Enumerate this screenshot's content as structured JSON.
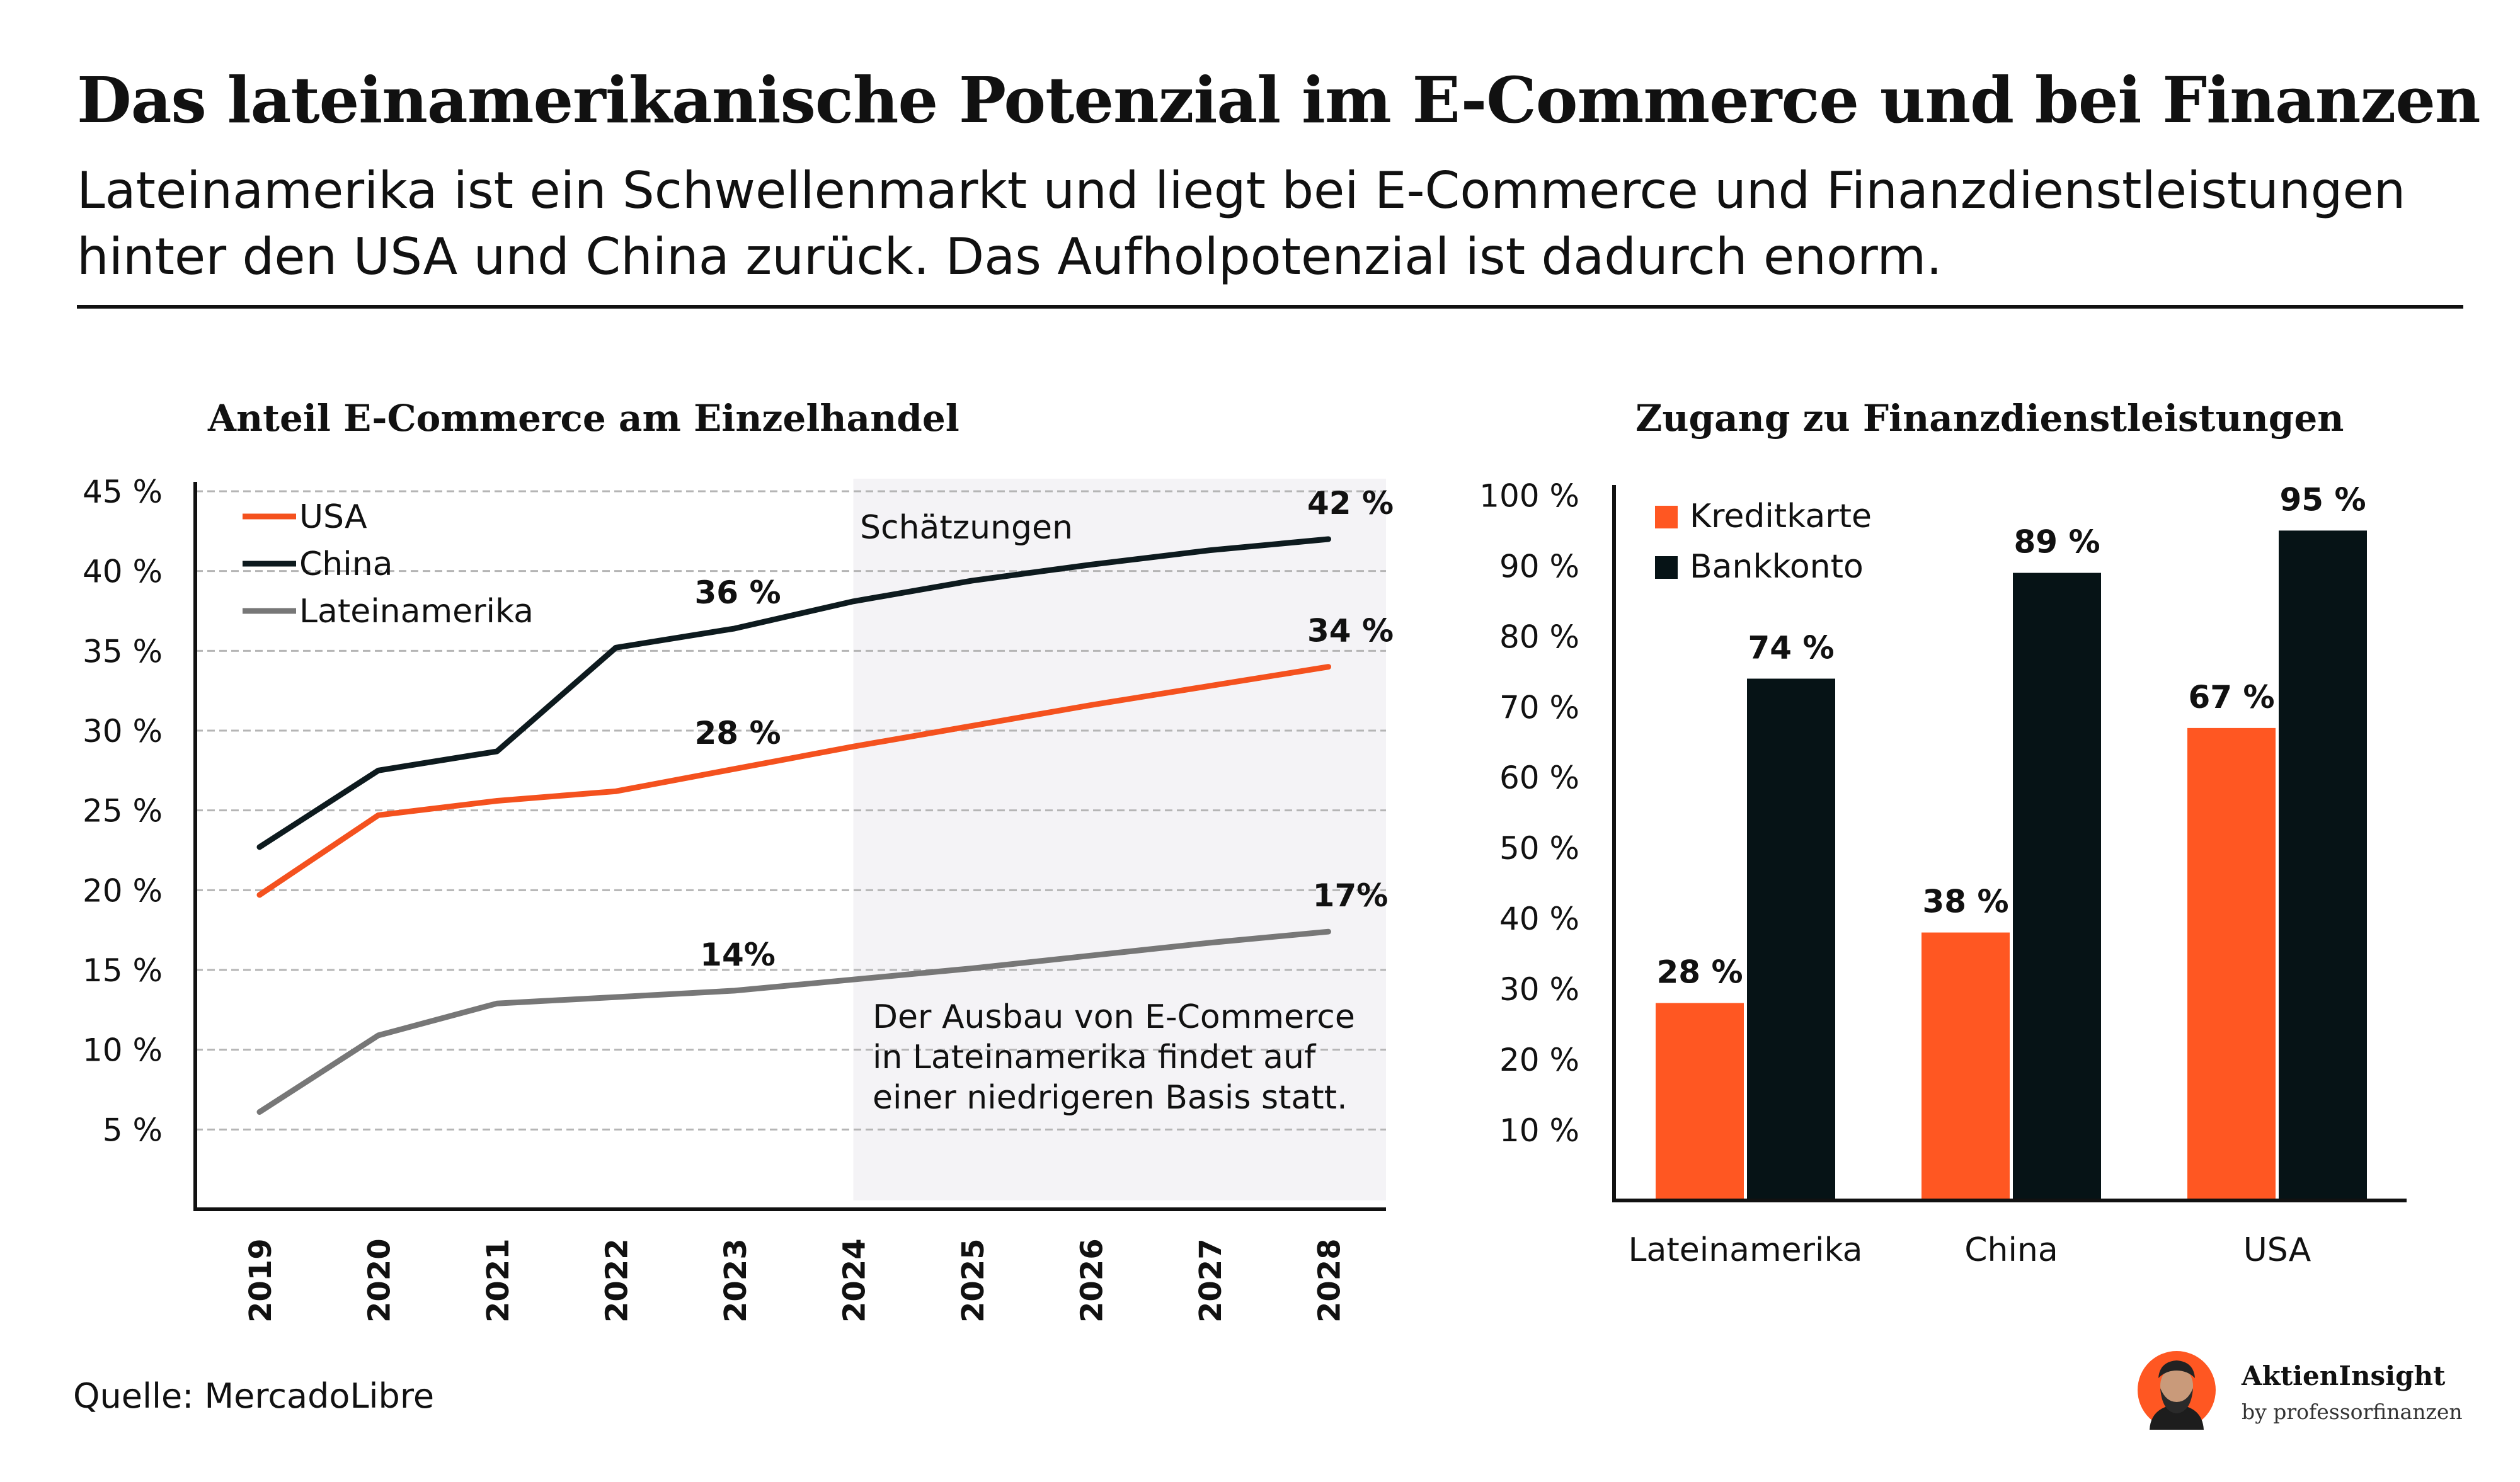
{
  "header": {
    "title": "Das lateinamerikanische Potenzial im E-Commerce und bei Finanzen",
    "subtitle_line1": "Lateinamerika ist ein Schwellenmarkt und liegt bei E-Commerce und Finanzdienstleistungen",
    "subtitle_line2": "hinter den USA und China zurück. Das Aufholpotenzial ist dadurch enorm."
  },
  "colors": {
    "usa": "#f4511e",
    "china": "#0d1a1e",
    "lateinamerika": "#777777",
    "kreditkarte": "#ff5722",
    "bankkonto": "#061316",
    "estimate_shade": "#f4f3f6",
    "grid": "#b5b5b5"
  },
  "chart_data": [
    {
      "type": "line",
      "title": "Anteil E-Commerce am Einzelhandel",
      "x": [
        "2019",
        "2020",
        "2021",
        "2022",
        "2023",
        "2024",
        "2025",
        "2026",
        "2027",
        "2028"
      ],
      "yticks": [
        "5 %",
        "10 %",
        "15 %",
        "20 %",
        "25 %",
        "30 %",
        "35 %",
        "40 %",
        "45 %"
      ],
      "ylim": [
        0,
        45
      ],
      "grid": true,
      "legend_position": "top-left",
      "series": [
        {
          "name": "USA",
          "color": "#f4511e",
          "values": [
            19.7,
            24.7,
            25.6,
            26.2,
            27.6,
            29.0,
            30.3,
            31.6,
            32.8,
            34.0
          ]
        },
        {
          "name": "China",
          "color": "#0d1a1e",
          "values": [
            22.7,
            27.5,
            28.7,
            35.2,
            36.4,
            38.1,
            39.4,
            40.4,
            41.3,
            42.0
          ]
        },
        {
          "name": "Lateinamerika",
          "color": "#777777",
          "values": [
            6.1,
            10.9,
            12.9,
            13.3,
            13.7,
            14.4,
            15.1,
            15.9,
            16.7,
            17.4
          ]
        }
      ],
      "estimate_region": {
        "from": "2024",
        "to": "2028",
        "label": "Schätzungen"
      },
      "annotations": [
        {
          "text": "36 %",
          "x": "2023",
          "y": 36.4,
          "series": "China"
        },
        {
          "text": "42 %",
          "x": "2028",
          "y": 42.0,
          "series": "China"
        },
        {
          "text": "28 %",
          "x": "2023",
          "y": 27.6,
          "series": "USA"
        },
        {
          "text": "34 %",
          "x": "2028",
          "y": 34.0,
          "series": "USA"
        },
        {
          "text": "14%",
          "x": "2023",
          "y": 13.7,
          "series": "Lateinamerika"
        },
        {
          "text": "17%",
          "x": "2028",
          "y": 17.4,
          "series": "Lateinamerika"
        }
      ],
      "note_lines": [
        "Der Ausbau von E-Commerce",
        "in Lateinamerika findet auf",
        "einer niedrigeren Basis statt."
      ]
    },
    {
      "type": "bar",
      "title": "Zugang zu Finanzdienstleistungen",
      "categories": [
        "Lateinamerika",
        "China",
        "USA"
      ],
      "yticks": [
        "10 %",
        "20 %",
        "30 %",
        "40 %",
        "50 %",
        "60 %",
        "70 %",
        "80 %",
        "90 %",
        "100 %"
      ],
      "ylim": [
        0,
        100
      ],
      "grid": false,
      "legend_position": "top-left",
      "series": [
        {
          "name": "Kreditkarte",
          "color": "#ff5722",
          "values": [
            28,
            38,
            67
          ],
          "labels": [
            "28 %",
            "38 %",
            "67 %"
          ]
        },
        {
          "name": "Bankkonto",
          "color": "#061316",
          "values": [
            74,
            89,
            95
          ],
          "labels": [
            "74 %",
            "89 %",
            "95 %"
          ]
        }
      ]
    }
  ],
  "footer": {
    "source": "Quelle: MercadoLibre",
    "brand_name": "AktienInsight",
    "brand_by": "by professorfinanzen",
    "avatar_icon": "person-avatar-icon"
  }
}
